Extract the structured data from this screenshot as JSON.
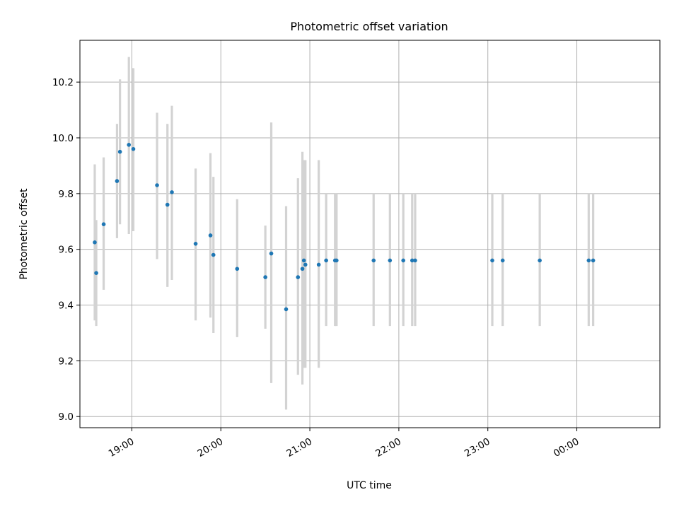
{
  "chart_data": {
    "type": "scatter",
    "title": "Photometric offset variation",
    "xlabel": "UTC time",
    "ylabel": "Photometric offset",
    "grid": true,
    "x_tick_labels": [
      "19:00",
      "20:00",
      "21:00",
      "22:00",
      "23:00",
      "00:00"
    ],
    "y_tick_labels": [
      "9.0",
      "9.2",
      "9.4",
      "9.6",
      "9.8",
      "10.0",
      "10.2"
    ],
    "ylim": [
      8.96,
      10.35
    ],
    "xlim": [
      "18:25",
      "00:56"
    ],
    "colors": {
      "points": "#1f77b4",
      "errorbars": "#d3d3d3",
      "grid": "#b0b0b0"
    },
    "points": [
      {
        "x": "18:35",
        "y": 9.625,
        "err_low": 9.345,
        "err_high": 9.905
      },
      {
        "x": "18:36",
        "y": 9.515,
        "err_low": 9.325,
        "err_high": 9.705
      },
      {
        "x": "18:41",
        "y": 9.69,
        "err_low": 9.455,
        "err_high": 9.93
      },
      {
        "x": "18:50",
        "y": 9.845,
        "err_low": 9.64,
        "err_high": 10.05
      },
      {
        "x": "18:52",
        "y": 9.95,
        "err_low": 9.69,
        "err_high": 10.21
      },
      {
        "x": "18:58",
        "y": 9.975,
        "err_low": 9.655,
        "err_high": 10.29
      },
      {
        "x": "19:01",
        "y": 9.96,
        "err_low": 9.665,
        "err_high": 10.25
      },
      {
        "x": "19:17",
        "y": 9.83,
        "err_low": 9.565,
        "err_high": 10.09
      },
      {
        "x": "19:24",
        "y": 9.76,
        "err_low": 9.465,
        "err_high": 10.05
      },
      {
        "x": "19:27",
        "y": 9.805,
        "err_low": 9.49,
        "err_high": 10.115
      },
      {
        "x": "19:43",
        "y": 9.62,
        "err_low": 9.345,
        "err_high": 9.89
      },
      {
        "x": "19:53",
        "y": 9.65,
        "err_low": 9.355,
        "err_high": 9.945
      },
      {
        "x": "19:55",
        "y": 9.58,
        "err_low": 9.3,
        "err_high": 9.86
      },
      {
        "x": "20:11",
        "y": 9.53,
        "err_low": 9.285,
        "err_high": 9.78
      },
      {
        "x": "20:30",
        "y": 9.5,
        "err_low": 9.315,
        "err_high": 9.685
      },
      {
        "x": "20:34",
        "y": 9.585,
        "err_low": 9.12,
        "err_high": 10.055
      },
      {
        "x": "20:44",
        "y": 9.385,
        "err_low": 9.025,
        "err_high": 9.755
      },
      {
        "x": "20:52",
        "y": 9.5,
        "err_low": 9.15,
        "err_high": 9.855
      },
      {
        "x": "20:55",
        "y": 9.53,
        "err_low": 9.115,
        "err_high": 9.95
      },
      {
        "x": "20:56",
        "y": 9.56,
        "err_low": 9.175,
        "err_high": 9.92
      },
      {
        "x": "20:57",
        "y": 9.545,
        "err_low": 9.175,
        "err_high": 9.92
      },
      {
        "x": "21:06",
        "y": 9.545,
        "err_low": 9.175,
        "err_high": 9.92
      },
      {
        "x": "21:11",
        "y": 9.56,
        "err_low": 9.325,
        "err_high": 9.8
      },
      {
        "x": "21:17",
        "y": 9.56,
        "err_low": 9.325,
        "err_high": 9.8
      },
      {
        "x": "21:18",
        "y": 9.56,
        "err_low": 9.325,
        "err_high": 9.8
      },
      {
        "x": "21:43",
        "y": 9.56,
        "err_low": 9.325,
        "err_high": 9.8
      },
      {
        "x": "21:54",
        "y": 9.56,
        "err_low": 9.325,
        "err_high": 9.8
      },
      {
        "x": "22:03",
        "y": 9.56,
        "err_low": 9.325,
        "err_high": 9.8
      },
      {
        "x": "22:09",
        "y": 9.56,
        "err_low": 9.325,
        "err_high": 9.8
      },
      {
        "x": "22:11",
        "y": 9.56,
        "err_low": 9.325,
        "err_high": 9.8
      },
      {
        "x": "23:03",
        "y": 9.56,
        "err_low": 9.325,
        "err_high": 9.8
      },
      {
        "x": "23:10",
        "y": 9.56,
        "err_low": 9.325,
        "err_high": 9.8
      },
      {
        "x": "23:35",
        "y": 9.56,
        "err_low": 9.325,
        "err_high": 9.8
      },
      {
        "x": "00:08",
        "y": 9.56,
        "err_low": 9.325,
        "err_high": 9.8
      },
      {
        "x": "00:11",
        "y": 9.56,
        "err_low": 9.325,
        "err_high": 9.8
      }
    ]
  }
}
